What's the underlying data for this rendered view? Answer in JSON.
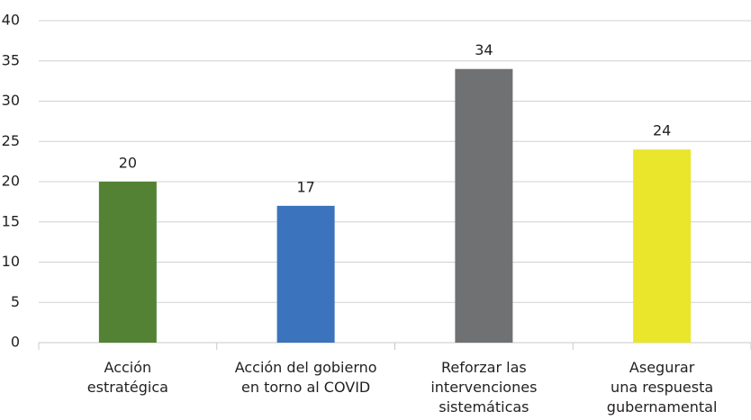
{
  "chart_data": {
    "type": "bar",
    "categories": [
      [
        "Acción",
        "estratégica"
      ],
      [
        "Acción del gobierno",
        "en torno al COVID"
      ],
      [
        "Reforzar las",
        "intervenciones",
        "sistemáticas"
      ],
      [
        "Asegurar",
        "una respuesta",
        "gubernamental"
      ]
    ],
    "values": [
      20,
      17,
      34,
      24
    ],
    "colors": [
      "#548235",
      "#3b73bd",
      "#6f7173",
      "#e9e62b"
    ],
    "ylim": [
      0,
      40
    ],
    "yticks": [
      0,
      5,
      10,
      15,
      20,
      25,
      30,
      35,
      40
    ],
    "grid": true
  }
}
